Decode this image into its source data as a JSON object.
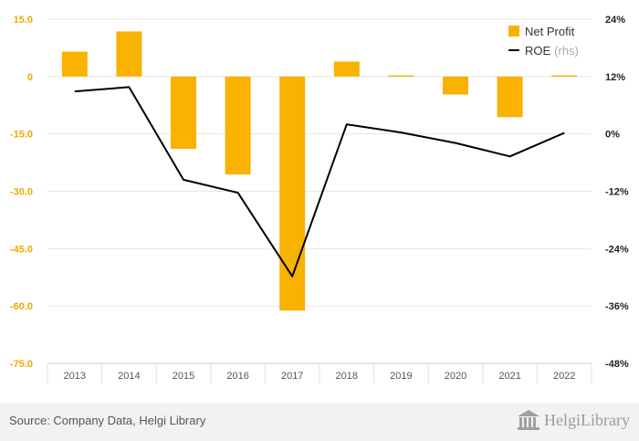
{
  "chart_data": {
    "type": "bar",
    "categories": [
      "2013",
      "2014",
      "2015",
      "2016",
      "2017",
      "2018",
      "2019",
      "2020",
      "2021",
      "2022"
    ],
    "series": [
      {
        "name": "Net Profit",
        "type": "bar",
        "axis": "left",
        "color": "#f9b200",
        "values": [
          6.5,
          11.8,
          -18.9,
          -25.6,
          -61.2,
          3.9,
          0.3,
          -4.7,
          -10.6,
          0.3
        ]
      },
      {
        "name": "ROE",
        "name_note": "(rhs)",
        "type": "line",
        "axis": "right",
        "color": "#000000",
        "values": [
          8.9,
          9.8,
          -9.6,
          -12.3,
          -29.8,
          2.0,
          0.3,
          -1.9,
          -4.7,
          0.2
        ]
      }
    ],
    "y_left": {
      "ticks": [
        "15.0",
        "0",
        "-15.0",
        "-30.0",
        "-45.0",
        "-60.0",
        "-75.0"
      ],
      "ylim": [
        -75,
        15
      ]
    },
    "y_right": {
      "ticks": [
        "24%",
        "12%",
        "0%",
        "-12%",
        "-24%",
        "-36%",
        "-48%"
      ],
      "ylim": [
        -48,
        24
      ]
    },
    "grid": true,
    "legend_position": "top-right"
  },
  "footer": {
    "source": "Source: Company Data, Helgi Library",
    "logo_text": "HelgiLibrary"
  }
}
